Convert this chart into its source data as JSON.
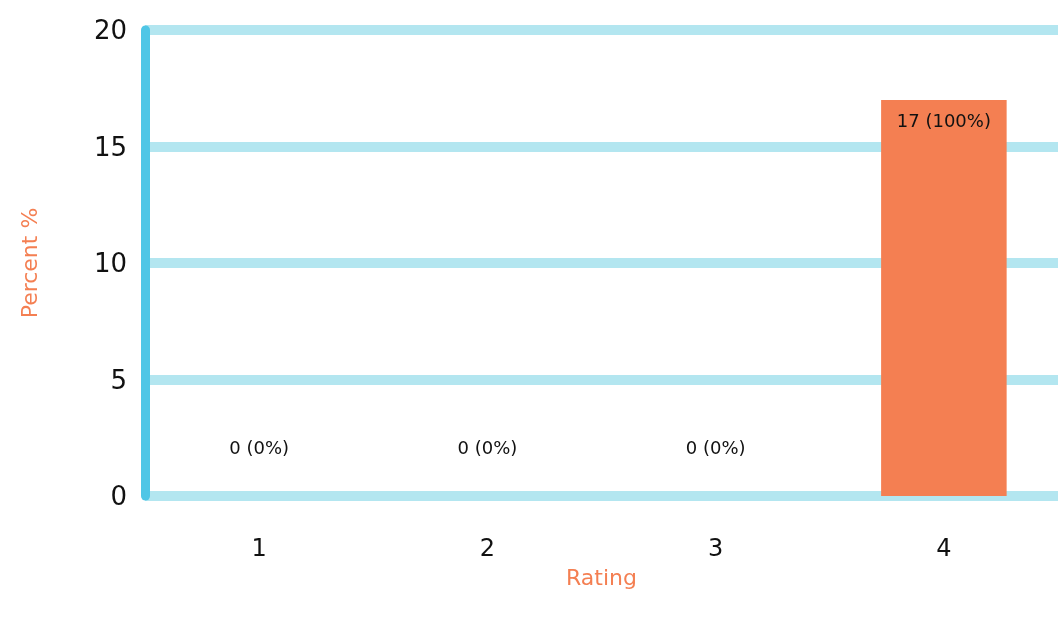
{
  "chart_data": {
    "type": "bar",
    "xlabel": "Rating",
    "ylabel": "Percent %",
    "categories": [
      "1",
      "2",
      "3",
      "4"
    ],
    "values": [
      0,
      0,
      0,
      17
    ],
    "value_labels": [
      "0 (0%)",
      "0 (0%)",
      "0 (0%)",
      "17 (100%)"
    ],
    "color": "#f47f52",
    "ylim": [
      0,
      20
    ],
    "yticks": [
      0,
      5,
      10,
      15,
      20
    ],
    "grid": "y"
  }
}
